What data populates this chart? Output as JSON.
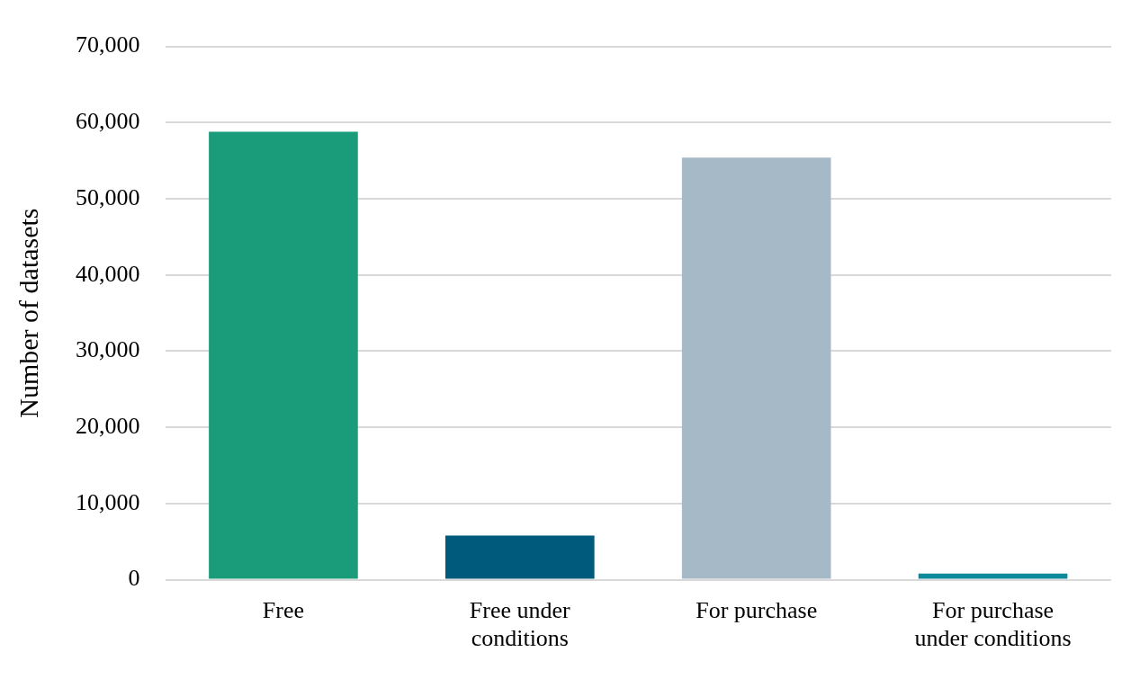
{
  "chart_data": {
    "type": "bar",
    "ylabel": "Number of datasets",
    "categories": [
      "Free",
      "Free under conditions",
      "For purchase",
      "For purchase under conditions"
    ],
    "values": [
      58800,
      5800,
      55400,
      800
    ],
    "colors": [
      "#1a9c7b",
      "#005a7c",
      "#a5b9c6",
      "#0d8a99"
    ],
    "ylim": [
      0,
      70000
    ],
    "yticks": [
      0,
      {
        "value": 10000,
        "label": "10,000"
      },
      {
        "value": 20000,
        "label": "20,000"
      },
      {
        "value": 30000,
        "label": "30,000"
      },
      {
        "value": 40000,
        "label": "40,000"
      },
      {
        "value": 50000,
        "label": "50,000"
      },
      {
        "value": 60000,
        "label": "60,000"
      },
      {
        "value": 70000,
        "label": "70,000"
      }
    ],
    "grid": "y",
    "legend": false
  }
}
